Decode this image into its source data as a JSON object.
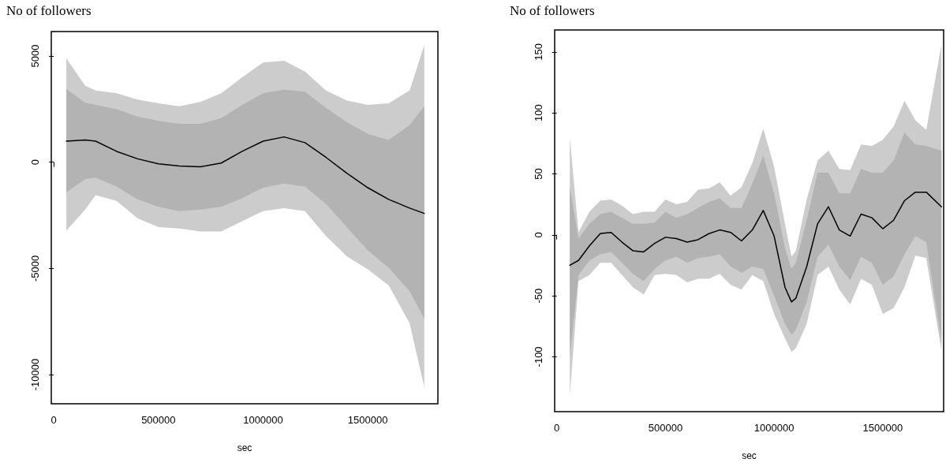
{
  "chart_data": [
    {
      "type": "line",
      "title": "No of followers",
      "xlabel": "sec",
      "xlim": [
        -12000,
        1835000
      ],
      "ylim": [
        -11370,
        6150
      ],
      "xticks": [
        0,
        500000,
        1000000,
        1500000
      ],
      "yticks": [
        -10000,
        -5000,
        0,
        5000
      ],
      "grid": false,
      "marker": "none",
      "line_style": "solid",
      "x": [
        60000,
        150000,
        200000,
        300000,
        400000,
        500000,
        600000,
        700000,
        800000,
        900000,
        1000000,
        1100000,
        1200000,
        1300000,
        1400000,
        1500000,
        1600000,
        1700000,
        1770000
      ],
      "series": [
        {
          "color": "#000000",
          "values": [
            990,
            1050,
            990,
            510,
            160,
            -80,
            -180,
            -220,
            -40,
            510,
            990,
            1190,
            920,
            230,
            -520,
            -1200,
            -1750,
            -2160,
            -2410
          ],
          "lower": [
            -3220,
            -2230,
            -1550,
            -1820,
            -2640,
            -3060,
            -3120,
            -3260,
            -3260,
            -2780,
            -2300,
            -2160,
            -2300,
            -3470,
            -4430,
            -5040,
            -5800,
            -7580,
            -10590
          ],
          "upper": [
            4890,
            3600,
            3380,
            3250,
            2950,
            2770,
            2630,
            2840,
            3250,
            4000,
            4690,
            4780,
            4270,
            3380,
            2900,
            2700,
            2770,
            3380,
            5510
          ]
        },
        {
          "values": [
            null,
            null,
            null,
            null,
            null,
            null,
            null,
            null,
            null,
            null,
            null,
            null,
            null,
            null,
            null,
            null,
            null,
            null,
            null
          ],
          "lower": [
            -1410,
            -800,
            -730,
            -1140,
            -1750,
            -2100,
            -2300,
            -2230,
            -2100,
            -1690,
            -1200,
            -1000,
            -1140,
            -1960,
            -3060,
            -4150,
            -4970,
            -6070,
            -7370
          ],
          "upper": [
            3450,
            2800,
            2700,
            2490,
            2150,
            1950,
            1810,
            1810,
            2080,
            2700,
            3250,
            3410,
            3320,
            2560,
            1880,
            1330,
            1050,
            1740,
            2630
          ]
        }
      ]
    },
    {
      "type": "line",
      "title": "No of followers",
      "xlabel": "sec",
      "xlim": [
        -9750,
        1780000
      ],
      "ylim": [
        -145,
        168
      ],
      "xticks": [
        0,
        500000,
        1000000,
        1500000
      ],
      "yticks": [
        -100,
        -50,
        0,
        50,
        100,
        150
      ],
      "grid": false,
      "marker": "none",
      "line_style": "solid",
      "x": [
        60000,
        100000,
        150000,
        200000,
        250000,
        300000,
        350000,
        400000,
        450000,
        500000,
        550000,
        600000,
        650000,
        700000,
        750000,
        800000,
        850000,
        900000,
        950000,
        1000000,
        1050000,
        1080000,
        1100000,
        1150000,
        1200000,
        1250000,
        1300000,
        1350000,
        1400000,
        1450000,
        1500000,
        1550000,
        1600000,
        1650000,
        1700000,
        1770000
      ],
      "series": [
        {
          "color": "#000000",
          "values": [
            -25,
            -21,
            -9,
            1,
            2,
            -6,
            -13,
            -14,
            -7,
            -2,
            -3,
            -6,
            -4,
            1,
            4,
            2,
            -5,
            4,
            20,
            -1,
            -43,
            -55,
            -52,
            -26,
            9,
            23,
            4,
            -1,
            17,
            14,
            5,
            12,
            28,
            35,
            35,
            23
          ],
          "lower": [
            -132,
            -38,
            -33,
            -23,
            -23,
            -33,
            -43,
            -49,
            -33,
            -32,
            -33,
            -39,
            -36,
            -36,
            -32,
            -41,
            -45,
            -33,
            -38,
            -65,
            -85,
            -96,
            -93,
            -73,
            -33,
            -26,
            -45,
            -57,
            -36,
            -41,
            -65,
            -60,
            -43,
            -17,
            -19,
            -95
          ],
          "upper": [
            80,
            2,
            19,
            28,
            29,
            24,
            17,
            19,
            19,
            29,
            25,
            27,
            37,
            38,
            43,
            32,
            39,
            59,
            87,
            56,
            9,
            -18,
            -13,
            29,
            61,
            69,
            54,
            53,
            74,
            73,
            78,
            89,
            110,
            94,
            86,
            156
          ]
        },
        {
          "values": [
            null,
            null,
            null,
            null,
            null,
            null,
            null,
            null,
            null,
            null,
            null,
            null,
            null,
            null,
            null,
            null,
            null,
            null,
            null,
            null,
            null,
            null,
            null,
            null,
            null,
            null,
            null,
            null,
            null,
            null,
            null,
            null,
            null,
            null,
            null,
            null
          ],
          "lower": [
            -100,
            -33,
            -21,
            -16,
            -14,
            -23,
            -32,
            -38,
            -28,
            -21,
            -18,
            -23,
            -19,
            -18,
            -16,
            -26,
            -31,
            -26,
            -28,
            -50,
            -73,
            -82,
            -78,
            -55,
            -18,
            -8,
            -26,
            -37,
            -18,
            -23,
            -41,
            -34,
            -16,
            -1,
            -6,
            -88
          ],
          "upper": [
            39,
            -3,
            9,
            17,
            19,
            14,
            9,
            9,
            10,
            19,
            14,
            17,
            22,
            27,
            30,
            22,
            22,
            42,
            65,
            34,
            -11,
            -28,
            -23,
            12,
            51,
            51,
            34,
            34,
            54,
            51,
            51,
            61,
            84,
            74,
            73,
            69
          ]
        }
      ]
    }
  ]
}
